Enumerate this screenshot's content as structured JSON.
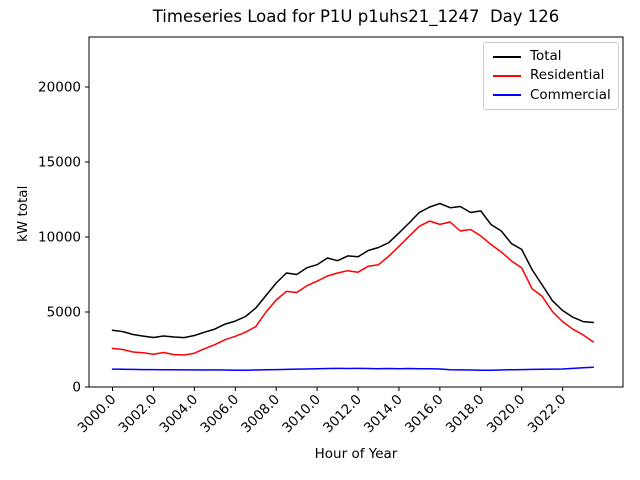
{
  "chart_data": {
    "type": "line",
    "title": "Timeseries Load for P1U p1uhs21_1247  Day 126",
    "xlabel": "Hour of Year",
    "ylabel": "kW total",
    "grid": false,
    "background": "#ffffff",
    "axes_edge_color": "#000000",
    "legend": {
      "position": "upper right",
      "border_color": "#cccccc"
    },
    "xlim": [
      2998.85,
      3024.95
    ],
    "ylim": [
      0,
      23333
    ],
    "xticks": {
      "values": [
        3000,
        3002,
        3004,
        3006,
        3008,
        3010,
        3012,
        3014,
        3016,
        3018,
        3020,
        3022
      ],
      "labels": [
        "3000.0",
        "3002.0",
        "3004.0",
        "3006.0",
        "3008.0",
        "3010.0",
        "3012.0",
        "3014.0",
        "3016.0",
        "3018.0",
        "3020.0",
        "3022.0"
      ]
    },
    "yticks": {
      "values": [
        0,
        5000,
        10000,
        15000,
        20000
      ],
      "labels": [
        "0",
        "5000",
        "10000",
        "15000",
        "20000"
      ]
    },
    "x": [
      3000.0,
      3000.5,
      3001.0,
      3001.5,
      3002.0,
      3002.5,
      3003.0,
      3003.5,
      3004.0,
      3004.5,
      3005.0,
      3005.5,
      3006.0,
      3006.5,
      3007.0,
      3007.5,
      3008.0,
      3008.5,
      3009.0,
      3009.5,
      3010.0,
      3010.5,
      3011.0,
      3011.5,
      3012.0,
      3012.5,
      3013.0,
      3013.5,
      3014.0,
      3014.5,
      3015.0,
      3015.5,
      3016.0,
      3016.5,
      3017.0,
      3017.5,
      3018.0,
      3018.5,
      3019.0,
      3019.5,
      3020.0,
      3020.5,
      3021.0,
      3021.5,
      3022.0,
      3022.5,
      3023.0,
      3023.5
    ],
    "series": [
      {
        "name": "Total",
        "color": "#000000",
        "values": [
          3780,
          3690,
          3500,
          3390,
          3300,
          3400,
          3330,
          3290,
          3430,
          3650,
          3860,
          4190,
          4390,
          4700,
          5260,
          6100,
          6930,
          7600,
          7500,
          7950,
          8150,
          8600,
          8420,
          8740,
          8680,
          9100,
          9300,
          9620,
          10270,
          10940,
          11640,
          12000,
          12230,
          11950,
          12030,
          11630,
          11740,
          10830,
          10400,
          9550,
          9170,
          7830,
          6800,
          5750,
          5100,
          4650,
          4360,
          4300
        ]
      },
      {
        "name": "Residential",
        "color": "#ff0000",
        "values": [
          2570,
          2500,
          2330,
          2280,
          2180,
          2300,
          2160,
          2130,
          2250,
          2550,
          2820,
          3150,
          3380,
          3650,
          4020,
          5000,
          5800,
          6370,
          6300,
          6750,
          7050,
          7400,
          7600,
          7750,
          7650,
          8050,
          8150,
          8710,
          9380,
          10050,
          10720,
          11060,
          10840,
          11000,
          10400,
          10500,
          10070,
          9500,
          9000,
          8400,
          7940,
          6550,
          6040,
          5030,
          4360,
          3850,
          3470,
          3000
        ]
      },
      {
        "name": "Commercial",
        "color": "#0000ff",
        "values": [
          1190,
          1180,
          1170,
          1160,
          1160,
          1150,
          1150,
          1140,
          1140,
          1130,
          1140,
          1130,
          1120,
          1110,
          1130,
          1150,
          1160,
          1170,
          1190,
          1200,
          1220,
          1230,
          1240,
          1230,
          1240,
          1230,
          1220,
          1230,
          1220,
          1230,
          1220,
          1210,
          1200,
          1150,
          1140,
          1130,
          1120,
          1110,
          1130,
          1150,
          1160,
          1170,
          1180,
          1190,
          1200,
          1240,
          1280,
          1320
        ]
      }
    ]
  }
}
